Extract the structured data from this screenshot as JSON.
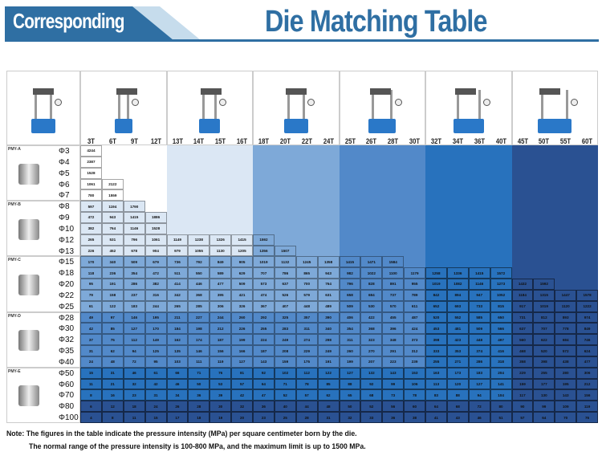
{
  "header": {
    "banner": "Corresponding",
    "title": "Die Matching Table"
  },
  "colors": {
    "brand": "#2f6fa3",
    "levels": [
      "#ffffff",
      "#dbe7f4",
      "#7ea9d8",
      "#5289c9",
      "#2872bd",
      "#2a5192"
    ]
  },
  "tonnages": [
    "3T",
    "6T",
    "9T",
    "12T",
    "13T",
    "14T",
    "15T",
    "16T",
    "18T",
    "20T",
    "22T",
    "24T",
    "25T",
    "26T",
    "28T",
    "30T",
    "32T",
    "34T",
    "36T",
    "40T",
    "45T",
    "50T",
    "55T",
    "60T"
  ],
  "press_groups": [
    {
      "columns": 4
    },
    {
      "columns": 4
    },
    {
      "columns": 4
    },
    {
      "columns": 4
    },
    {
      "columns": 4
    },
    {
      "columns": 4
    }
  ],
  "die_groups": [
    {
      "name": "PMY-A",
      "rows": [
        {
          "d": "Φ3",
          "v": [
            4244
          ]
        },
        {
          "d": "Φ4",
          "v": [
            2387
          ]
        },
        {
          "d": "Φ5",
          "v": [
            1528
          ]
        },
        {
          "d": "Φ6",
          "v": [
            1061,
            2122
          ]
        },
        {
          "d": "Φ7",
          "v": [
            780,
            1559
          ]
        }
      ]
    },
    {
      "name": "PMY-B",
      "rows": [
        {
          "d": "Φ8",
          "v": [
            597,
            1194,
            1790
          ]
        },
        {
          "d": "Φ9",
          "v": [
            472,
            943,
            1415,
            1886
          ]
        },
        {
          "d": "Φ10",
          "v": [
            382,
            764,
            1146,
            1528
          ]
        },
        {
          "d": "Φ12",
          "v": [
            265,
            531,
            796,
            1061,
            1149,
            1238,
            1326,
            1415,
            1592
          ]
        },
        {
          "d": "Φ13",
          "v": [
            226,
            452,
            678,
            904,
            979,
            1055,
            1130,
            1205,
            1356,
            1507
          ]
        }
      ]
    },
    {
      "name": "PMY-C",
      "rows": [
        {
          "d": "Φ15",
          "v": [
            170,
            340,
            509,
            679,
            736,
            792,
            849,
            905,
            1019,
            1132,
            1245,
            1358,
            1415,
            1471,
            1584
          ]
        },
        {
          "d": "Φ18",
          "v": [
            118,
            236,
            354,
            472,
            511,
            550,
            589,
            629,
            707,
            786,
            865,
            943,
            982,
            1022,
            1100,
            1179,
            1258,
            1336,
            1415,
            1572
          ]
        },
        {
          "d": "Φ20",
          "v": [
            95,
            191,
            286,
            382,
            414,
            446,
            477,
            509,
            573,
            637,
            700,
            764,
            796,
            828,
            891,
            955,
            1019,
            1082,
            1146,
            1273,
            1432,
            1592
          ]
        },
        {
          "d": "Φ22",
          "v": [
            79,
            158,
            237,
            316,
            342,
            368,
            395,
            421,
            474,
            526,
            579,
            631,
            658,
            684,
            737,
            789,
            842,
            894,
            947,
            1052,
            1184,
            1315,
            1447,
            1578
          ]
        },
        {
          "d": "Φ25",
          "v": [
            61,
            122,
            183,
            244,
            265,
            285,
            306,
            326,
            367,
            407,
            448,
            489,
            509,
            530,
            570,
            611,
            652,
            693,
            733,
            815,
            917,
            1019,
            1120,
            1222
          ]
        }
      ]
    },
    {
      "name": "PMY-D",
      "rows": [
        {
          "d": "Φ28",
          "v": [
            49,
            97,
            146,
            195,
            211,
            227,
            244,
            260,
            292,
            325,
            357,
            390,
            406,
            422,
            455,
            487,
            520,
            552,
            585,
            650,
            731,
            812,
            893,
            974
          ]
        },
        {
          "d": "Φ30",
          "v": [
            42,
            85,
            127,
            170,
            184,
            198,
            212,
            226,
            255,
            283,
            311,
            340,
            354,
            368,
            396,
            424,
            453,
            481,
            509,
            566,
            637,
            707,
            778,
            849
          ]
        },
        {
          "d": "Φ32",
          "v": [
            37,
            75,
            112,
            149,
            162,
            174,
            187,
            199,
            224,
            249,
            274,
            298,
            311,
            323,
            348,
            373,
            398,
            423,
            448,
            497,
            560,
            622,
            684,
            746
          ]
        },
        {
          "d": "Φ35",
          "v": [
            31,
            62,
            94,
            125,
            135,
            146,
            156,
            166,
            187,
            208,
            229,
            249,
            260,
            270,
            291,
            312,
            333,
            353,
            374,
            416,
            468,
            520,
            572,
            624
          ]
        },
        {
          "d": "Φ40",
          "v": [
            24,
            48,
            72,
            95,
            103,
            111,
            119,
            127,
            143,
            159,
            175,
            191,
            199,
            207,
            223,
            239,
            255,
            271,
            286,
            318,
            358,
            398,
            438,
            477
          ]
        }
      ]
    },
    {
      "name": "PMY-E",
      "rows": [
        {
          "d": "Φ50",
          "v": [
            15,
            31,
            46,
            61,
            66,
            71,
            76,
            81,
            92,
            102,
            112,
            122,
            127,
            132,
            143,
            153,
            163,
            173,
            183,
            204,
            229,
            255,
            280,
            306
          ]
        },
        {
          "d": "Φ60",
          "v": [
            11,
            21,
            32,
            42,
            46,
            50,
            53,
            57,
            64,
            71,
            78,
            85,
            88,
            92,
            99,
            106,
            113,
            120,
            127,
            141,
            159,
            177,
            195,
            212
          ]
        },
        {
          "d": "Φ70",
          "v": [
            8,
            16,
            23,
            31,
            34,
            36,
            39,
            42,
            47,
            52,
            57,
            62,
            65,
            68,
            73,
            78,
            83,
            88,
            94,
            104,
            117,
            130,
            143,
            156
          ]
        },
        {
          "d": "Φ80",
          "v": [
            6,
            12,
            18,
            24,
            26,
            28,
            30,
            32,
            36,
            40,
            44,
            48,
            50,
            52,
            56,
            60,
            64,
            68,
            72,
            80,
            90,
            99,
            109,
            119
          ]
        },
        {
          "d": "Φ100",
          "v": [
            4,
            8,
            11,
            15,
            17,
            18,
            19,
            20,
            23,
            25,
            28,
            31,
            32,
            33,
            36,
            38,
            41,
            43,
            46,
            51,
            57,
            64,
            70,
            76
          ]
        }
      ]
    }
  ],
  "notes": [
    "Note: The figures in the table indicate the pressure intensity (MPa) per square centimeter born by the die.",
    "The normal range of the pressure intensity is 100-800 MPa, and the maximum limit is up to 1500 MPa."
  ]
}
